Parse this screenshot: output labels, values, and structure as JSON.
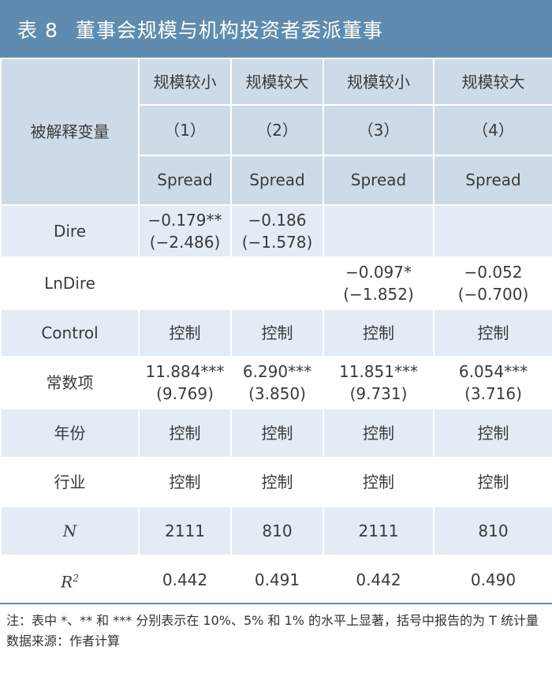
{
  "title": {
    "number": "表 8",
    "text": "董事会规模与机构投资者委派董事"
  },
  "header": {
    "row_label": "被解释变量",
    "groups": [
      "规模较小",
      "规模较大",
      "规模较小",
      "规模较大"
    ],
    "models": [
      "（1）",
      "（2）",
      "（3）",
      "（4）"
    ],
    "dependent": [
      "Spread",
      "Spread",
      "Spread",
      "Spread"
    ]
  },
  "rows": [
    {
      "label": "Dire",
      "coef": [
        "−0.179**",
        "−0.186",
        "",
        ""
      ],
      "t": [
        "(−2.486)",
        "(−1.578)",
        "",
        ""
      ]
    },
    {
      "label": "LnDire",
      "coef": [
        "",
        "",
        "−0.097*",
        "−0.052"
      ],
      "t": [
        "",
        "",
        "(−1.852)",
        "(−0.700)"
      ]
    },
    {
      "label": "Control",
      "values": [
        "控制",
        "控制",
        "控制",
        "控制"
      ]
    },
    {
      "label": "常数项",
      "coef": [
        "11.884***",
        "6.290***",
        "11.851***",
        "6.054***"
      ],
      "t": [
        "(9.769)",
        "(3.850)",
        "(9.731)",
        "(3.716)"
      ]
    },
    {
      "label": "年份",
      "values": [
        "控制",
        "控制",
        "控制",
        "控制"
      ]
    },
    {
      "label": "行业",
      "values": [
        "控制",
        "控制",
        "控制",
        "控制"
      ]
    },
    {
      "label": "N",
      "values": [
        "2111",
        "810",
        "2111",
        "810"
      ]
    },
    {
      "label": "R",
      "sup": "2",
      "values": [
        "0.442",
        "0.491",
        "0.442",
        "0.490"
      ]
    }
  ],
  "notes": {
    "significance": "注：表中 *、** 和 *** 分别表示在 10%、5% 和 1% 的水平上显著，括号中报告的为 T 统计量",
    "source": "数据来源：作者计算"
  }
}
